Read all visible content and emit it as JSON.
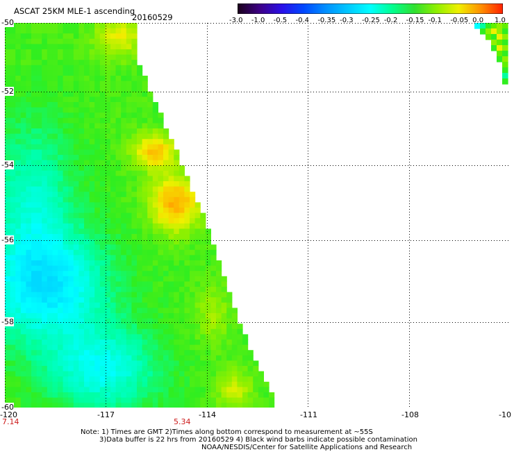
{
  "header": {
    "title": "ASCAT 25KM MLE-1 ascending",
    "date": "20160529"
  },
  "colorbar": {
    "labels": [
      "-3.0",
      "-1.0",
      "-0.5",
      "-0.4",
      "-0.35",
      "-0.3",
      "-0.25",
      "-0.2",
      "-0.15",
      "-0.1",
      "-0.05",
      "0.0",
      "1.0"
    ],
    "colors": [
      "#1a001a",
      "#3d0085",
      "#2a10e8",
      "#0048ff",
      "#0090ff",
      "#00c8ff",
      "#00ffff",
      "#00ff90",
      "#30e030",
      "#90f000",
      "#f0f000",
      "#ff9000",
      "#ff2000"
    ]
  },
  "axes": {
    "lat_labels": [
      "-50",
      "-52",
      "-54",
      "-56",
      "-58",
      "-60"
    ],
    "lon_labels": [
      "-120",
      "-117",
      "-114",
      "-111",
      "-108",
      "-10"
    ]
  },
  "time_labels": [
    "7.14",
    "5.34"
  ],
  "notes": {
    "line1": "Note: 1) Times are GMT 2)Times along bottom correspond to measurement at ~55S",
    "line2": "3)Data buffer is 22 hrs from 20160529 4) Black wind barbs indicate possible contamination",
    "line3": "NOAA/NESDIS/Center for Satellite Applications and Research"
  }
}
